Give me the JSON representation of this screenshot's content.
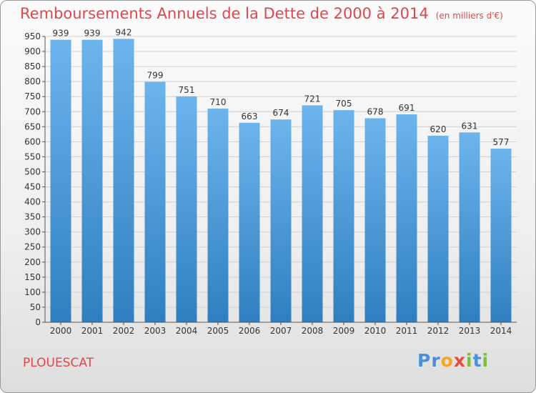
{
  "header": {
    "title": "Remboursements Annuels de la Dette de 2000 à 2014",
    "unit": "(en milliers d'€)"
  },
  "footer": {
    "city": "PLOUESCAT",
    "logo": "Proxiti"
  },
  "colors": {
    "title": "#e0474c",
    "bar_top": "#6db4ec",
    "bar_bottom": "#2f7fc0"
  },
  "chart_data": {
    "type": "bar",
    "title": "Remboursements Annuels de la Dette de 2000 à 2014",
    "subtitle": "(en milliers d'€)",
    "xlabel": "",
    "ylabel": "",
    "categories": [
      "2000",
      "2001",
      "2002",
      "2003",
      "2004",
      "2005",
      "2006",
      "2007",
      "2008",
      "2009",
      "2010",
      "2011",
      "2012",
      "2013",
      "2014"
    ],
    "values": [
      939,
      939,
      942,
      799,
      751,
      710,
      663,
      674,
      721,
      705,
      678,
      691,
      620,
      631,
      577
    ],
    "ylim": [
      0,
      950
    ],
    "yticks": [
      0,
      50,
      100,
      150,
      200,
      250,
      300,
      350,
      400,
      450,
      500,
      550,
      600,
      650,
      700,
      750,
      800,
      850,
      900,
      950
    ],
    "grid": true,
    "legend": "none"
  }
}
